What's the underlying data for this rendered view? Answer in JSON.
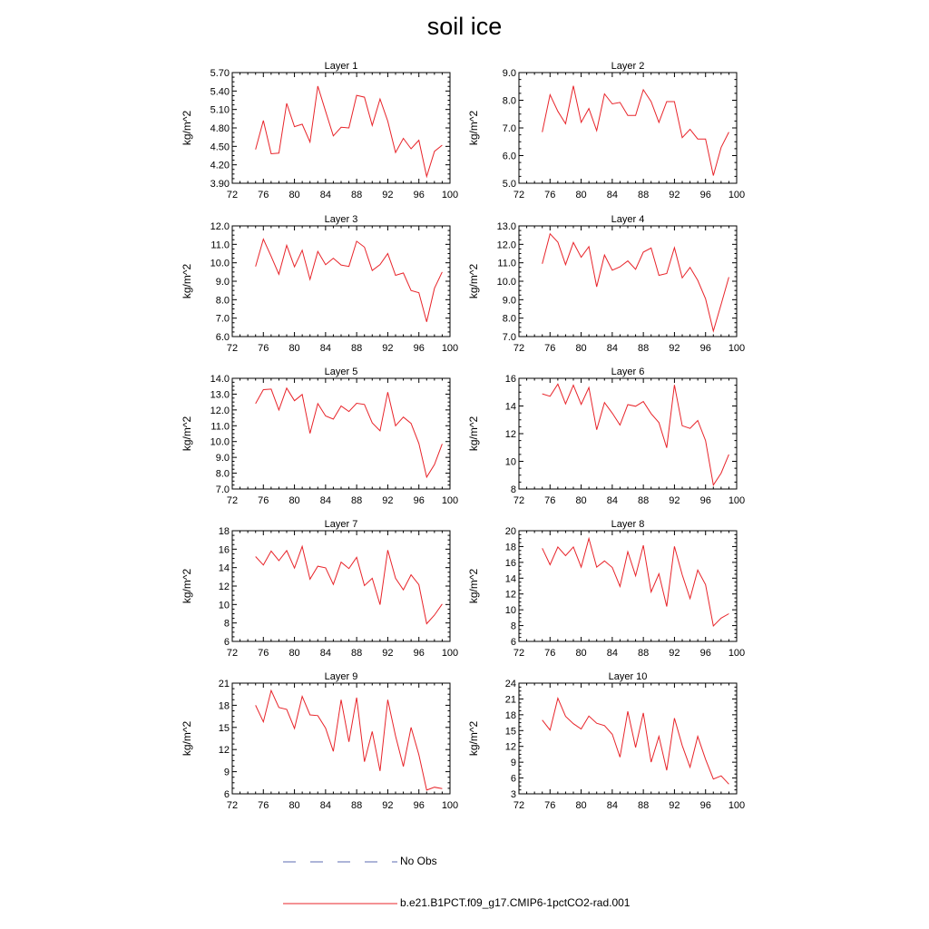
{
  "title": "soil ice",
  "legend": {
    "obs_label": "No Obs",
    "obs_color": "#5b6bb0",
    "model_label": "b.e21.B1PCT.f09_g17.CMIP6-1pctCO2-rad.001",
    "model_color": "#e8242a"
  },
  "chart_data": [
    {
      "type": "line",
      "title": "Layer 1",
      "ylabel": "kg/m^2",
      "xlim": [
        72,
        100
      ],
      "xticks": [
        "72",
        "76",
        "80",
        "84",
        "88",
        "92",
        "96",
        "100"
      ],
      "ylim": [
        3.9,
        5.7
      ],
      "yticks": [
        "3.90",
        "4.20",
        "4.50",
        "4.80",
        "5.10",
        "5.40",
        "5.70"
      ],
      "x": [
        75,
        76,
        77,
        78,
        79,
        80,
        81,
        82,
        83,
        84,
        85,
        86,
        87,
        88,
        89,
        90,
        91,
        92,
        93,
        94,
        95,
        96,
        97,
        98,
        99
      ],
      "series": [
        {
          "values": [
            4.45,
            4.92,
            4.38,
            4.39,
            5.2,
            4.82,
            4.86,
            4.57,
            5.48,
            5.07,
            4.67,
            4.81,
            4.8,
            5.33,
            5.3,
            4.84,
            5.27,
            4.91,
            4.4,
            4.63,
            4.46,
            4.6,
            4.01,
            4.42,
            4.52
          ]
        }
      ]
    },
    {
      "type": "line",
      "title": "Layer 2",
      "ylabel": "kg/m^2",
      "xlim": [
        72,
        100
      ],
      "xticks": [
        "72",
        "76",
        "80",
        "84",
        "88",
        "92",
        "96",
        "100"
      ],
      "ylim": [
        5.0,
        9.0
      ],
      "yticks": [
        "5.0",
        "6.0",
        "7.0",
        "8.0",
        "9.0"
      ],
      "x": [
        75,
        76,
        77,
        78,
        79,
        80,
        81,
        82,
        83,
        84,
        85,
        86,
        87,
        88,
        89,
        90,
        91,
        92,
        93,
        94,
        95,
        96,
        97,
        98,
        99
      ],
      "series": [
        {
          "values": [
            6.85,
            8.2,
            7.6,
            7.15,
            8.52,
            7.2,
            7.7,
            6.9,
            8.23,
            7.87,
            7.92,
            7.45,
            7.45,
            8.38,
            7.95,
            7.2,
            7.95,
            7.95,
            6.65,
            6.95,
            6.6,
            6.6,
            5.28,
            6.3,
            6.85
          ]
        }
      ]
    },
    {
      "type": "line",
      "title": "Layer 3",
      "ylabel": "kg/m^2",
      "xlim": [
        72,
        100
      ],
      "xticks": [
        "72",
        "76",
        "80",
        "84",
        "88",
        "92",
        "96",
        "100"
      ],
      "ylim": [
        6.0,
        12.0
      ],
      "yticks": [
        "6.0",
        "7.0",
        "8.0",
        "9.0",
        "10.0",
        "11.0",
        "12.0"
      ],
      "x": [
        75,
        76,
        77,
        78,
        79,
        80,
        81,
        82,
        83,
        84,
        85,
        86,
        87,
        88,
        89,
        90,
        91,
        92,
        93,
        94,
        95,
        96,
        97,
        98,
        99
      ],
      "series": [
        {
          "values": [
            9.8,
            11.28,
            10.35,
            9.38,
            10.95,
            9.78,
            10.68,
            9.1,
            10.62,
            9.9,
            10.25,
            9.88,
            9.8,
            11.17,
            10.85,
            9.58,
            9.9,
            10.5,
            9.32,
            9.45,
            8.5,
            8.38,
            6.8,
            8.62,
            9.5
          ]
        }
      ]
    },
    {
      "type": "line",
      "title": "Layer 4",
      "ylabel": "kg/m^2",
      "xlim": [
        72,
        100
      ],
      "xticks": [
        "72",
        "76",
        "80",
        "84",
        "88",
        "92",
        "96",
        "100"
      ],
      "ylim": [
        7.0,
        13.0
      ],
      "yticks": [
        "7.0",
        "8.0",
        "9.0",
        "10.0",
        "11.0",
        "12.0",
        "13.0"
      ],
      "x": [
        75,
        76,
        77,
        78,
        79,
        80,
        81,
        82,
        83,
        84,
        85,
        86,
        87,
        88,
        89,
        90,
        91,
        92,
        93,
        94,
        95,
        96,
        97,
        98,
        99
      ],
      "series": [
        {
          "values": [
            10.95,
            12.57,
            12.12,
            10.9,
            12.1,
            11.3,
            11.88,
            9.7,
            11.42,
            10.6,
            10.78,
            11.1,
            10.65,
            11.58,
            11.8,
            10.32,
            10.42,
            11.82,
            10.18,
            10.75,
            10.05,
            9.05,
            7.3,
            8.75,
            10.22
          ]
        }
      ]
    },
    {
      "type": "line",
      "title": "Layer 5",
      "ylabel": "kg/m^2",
      "xlim": [
        72,
        100
      ],
      "xticks": [
        "72",
        "76",
        "80",
        "84",
        "88",
        "92",
        "96",
        "100"
      ],
      "ylim": [
        7.0,
        14.0
      ],
      "yticks": [
        "7.0",
        "8.0",
        "9.0",
        "10.0",
        "11.0",
        "12.0",
        "13.0",
        "14.0"
      ],
      "x": [
        75,
        76,
        77,
        78,
        79,
        80,
        81,
        82,
        83,
        84,
        85,
        86,
        87,
        88,
        89,
        90,
        91,
        92,
        93,
        94,
        95,
        96,
        97,
        98,
        99
      ],
      "series": [
        {
          "values": [
            12.4,
            13.28,
            13.32,
            12.0,
            13.38,
            12.58,
            12.98,
            10.52,
            12.4,
            11.62,
            11.42,
            12.25,
            11.9,
            12.42,
            12.35,
            11.18,
            10.68,
            13.12,
            11.0,
            11.55,
            11.15,
            9.88,
            7.75,
            8.55,
            9.85
          ]
        }
      ]
    },
    {
      "type": "line",
      "title": "Layer 6",
      "ylabel": "kg/m^2",
      "xlim": [
        72,
        100
      ],
      "xticks": [
        "72",
        "76",
        "80",
        "84",
        "88",
        "92",
        "96",
        "100"
      ],
      "ylim": [
        8,
        16
      ],
      "yticks": [
        "8",
        "10",
        "12",
        "14",
        "16"
      ],
      "x": [
        75,
        76,
        77,
        78,
        79,
        80,
        81,
        82,
        83,
        84,
        85,
        86,
        87,
        88,
        89,
        90,
        91,
        92,
        93,
        94,
        95,
        96,
        97,
        98,
        99
      ],
      "series": [
        {
          "values": [
            14.88,
            14.7,
            15.58,
            14.15,
            15.5,
            14.12,
            15.33,
            12.28,
            14.25,
            13.48,
            12.62,
            14.1,
            13.98,
            14.32,
            13.45,
            12.8,
            10.98,
            15.52,
            12.57,
            12.38,
            12.95,
            11.5,
            8.28,
            9.15,
            10.5
          ]
        }
      ]
    },
    {
      "type": "line",
      "title": "Layer 7",
      "ylabel": "kg/m^2",
      "xlim": [
        72,
        100
      ],
      "xticks": [
        "72",
        "76",
        "80",
        "84",
        "88",
        "92",
        "96",
        "100"
      ],
      "ylim": [
        6,
        18
      ],
      "yticks": [
        "6",
        "8",
        "10",
        "12",
        "14",
        "16",
        "18"
      ],
      "x": [
        75,
        76,
        77,
        78,
        79,
        80,
        81,
        82,
        83,
        84,
        85,
        86,
        87,
        88,
        89,
        90,
        91,
        92,
        93,
        94,
        95,
        96,
        97,
        98,
        99
      ],
      "series": [
        {
          "values": [
            15.2,
            14.28,
            15.8,
            14.75,
            15.85,
            13.95,
            16.3,
            12.75,
            14.15,
            13.98,
            12.18,
            14.6,
            13.9,
            15.12,
            12.05,
            12.85,
            9.98,
            15.9,
            12.85,
            11.6,
            13.22,
            12.15,
            7.92,
            8.85,
            10.05
          ]
        }
      ]
    },
    {
      "type": "line",
      "title": "Layer 8",
      "ylabel": "kg/m^2",
      "xlim": [
        72,
        100
      ],
      "xticks": [
        "72",
        "76",
        "80",
        "84",
        "88",
        "92",
        "96",
        "100"
      ],
      "ylim": [
        6,
        20
      ],
      "yticks": [
        "6",
        "8",
        "10",
        "12",
        "14",
        "16",
        "18",
        "20"
      ],
      "x": [
        75,
        76,
        77,
        78,
        79,
        80,
        81,
        82,
        83,
        84,
        85,
        86,
        87,
        88,
        89,
        90,
        91,
        92,
        93,
        94,
        95,
        96,
        97,
        98,
        99
      ],
      "series": [
        {
          "values": [
            17.78,
            15.7,
            17.95,
            16.85,
            17.95,
            15.4,
            19.02,
            15.4,
            16.18,
            15.35,
            12.95,
            17.35,
            14.3,
            18.15,
            12.25,
            14.55,
            10.42,
            18.02,
            14.42,
            11.42,
            15.02,
            13.18,
            7.95,
            8.95,
            9.5
          ]
        }
      ]
    },
    {
      "type": "line",
      "title": "Layer 9",
      "ylabel": "kg/m^2",
      "xlim": [
        72,
        100
      ],
      "xticks": [
        "72",
        "76",
        "80",
        "84",
        "88",
        "92",
        "96",
        "100"
      ],
      "ylim": [
        6,
        21
      ],
      "yticks": [
        "6",
        "9",
        "12",
        "15",
        "18",
        "21"
      ],
      "x": [
        75,
        76,
        77,
        78,
        79,
        80,
        81,
        82,
        83,
        84,
        85,
        86,
        87,
        88,
        89,
        90,
        91,
        92,
        93,
        94,
        95,
        96,
        97,
        98,
        99
      ],
      "series": [
        {
          "values": [
            18.0,
            15.75,
            20.0,
            17.7,
            17.45,
            14.85,
            19.2,
            16.7,
            16.6,
            14.9,
            11.75,
            18.75,
            13.05,
            19.05,
            10.35,
            14.45,
            9.1,
            18.75,
            13.85,
            9.7,
            15.0,
            11.3,
            6.5,
            6.9,
            6.7
          ]
        }
      ]
    },
    {
      "type": "line",
      "title": "Layer 10",
      "ylabel": "kg/m^2",
      "xlim": [
        72,
        100
      ],
      "xticks": [
        "72",
        "76",
        "80",
        "84",
        "88",
        "92",
        "96",
        "100"
      ],
      "ylim": [
        3,
        24
      ],
      "yticks": [
        "3",
        "6",
        "9",
        "12",
        "15",
        "18",
        "21",
        "24"
      ],
      "x": [
        75,
        76,
        77,
        78,
        79,
        80,
        81,
        82,
        83,
        84,
        85,
        86,
        87,
        88,
        89,
        90,
        91,
        92,
        93,
        94,
        95,
        96,
        97,
        98,
        99
      ],
      "series": [
        {
          "values": [
            17.0,
            15.1,
            21.15,
            17.7,
            16.3,
            15.3,
            17.75,
            16.4,
            15.95,
            14.3,
            9.95,
            18.65,
            11.8,
            18.35,
            9.0,
            13.9,
            7.45,
            17.35,
            12.15,
            8.05,
            13.9,
            9.55,
            5.8,
            6.4,
            4.85
          ]
        }
      ]
    }
  ]
}
